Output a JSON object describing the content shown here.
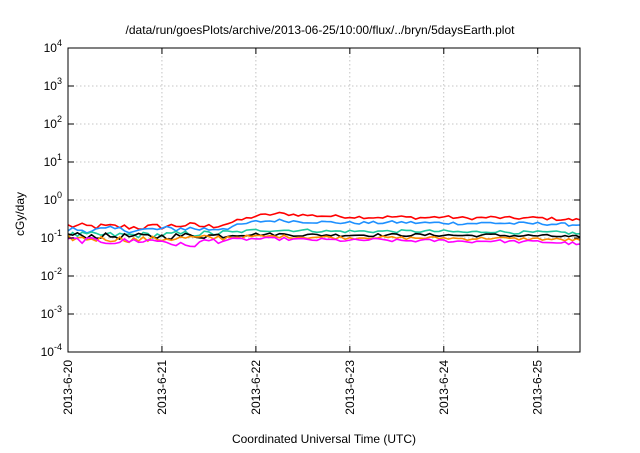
{
  "chart_data": {
    "type": "line",
    "title": "/data/run/goesPlots/archive/2013-06-25/10:00/flux/../bryn/5daysEarth.plot",
    "xlabel": "Coordinated Universal Time (UTC)",
    "ylabel": "cGy/day",
    "yscale": "log",
    "ylim": [
      0.0001,
      10000
    ],
    "xlim": [
      0,
      5.45
    ],
    "x_tick_labels": [
      "2013-6-20",
      "2013-6-21",
      "2013-6-22",
      "2013-6-23",
      "2013-6-24",
      "2013-6-25"
    ],
    "x_tick_values": [
      0,
      1,
      2,
      3,
      4,
      5
    ],
    "y_ticks": [
      {
        "base": "10",
        "exp": "4"
      },
      {
        "base": "10",
        "exp": "3"
      },
      {
        "base": "10",
        "exp": "2"
      },
      {
        "base": "10",
        "exp": "1"
      },
      {
        "base": "10",
        "exp": "0"
      },
      {
        "base": "10",
        "exp": "-1"
      },
      {
        "base": "10",
        "exp": "-2"
      },
      {
        "base": "10",
        "exp": "-3"
      },
      {
        "base": "10",
        "exp": "-4"
      }
    ],
    "y_tick_values": [
      10000,
      1000,
      100,
      10,
      1,
      0.1,
      0.01,
      0.001,
      0.0001
    ],
    "grid": true,
    "x": [
      0,
      0.25,
      0.5,
      0.75,
      1,
      1.25,
      1.5,
      1.75,
      2,
      2.25,
      2.5,
      2.75,
      3,
      3.25,
      3.5,
      3.75,
      4,
      4.25,
      4.5,
      4.75,
      5,
      5.25,
      5.45
    ],
    "series": [
      {
        "color": "#ff0000",
        "values": [
          0.21,
          0.2,
          0.2,
          0.19,
          0.2,
          0.22,
          0.2,
          0.26,
          0.38,
          0.44,
          0.4,
          0.38,
          0.36,
          0.35,
          0.36,
          0.34,
          0.36,
          0.33,
          0.35,
          0.33,
          0.34,
          0.31,
          0.3
        ]
      },
      {
        "color": "#1e90ff",
        "values": [
          0.17,
          0.16,
          0.17,
          0.16,
          0.17,
          0.18,
          0.17,
          0.2,
          0.27,
          0.29,
          0.27,
          0.26,
          0.25,
          0.25,
          0.26,
          0.25,
          0.25,
          0.24,
          0.25,
          0.24,
          0.24,
          0.23,
          0.22
        ]
      },
      {
        "color": "#1fc99e",
        "values": [
          0.12,
          0.12,
          0.12,
          0.12,
          0.12,
          0.13,
          0.13,
          0.14,
          0.16,
          0.16,
          0.16,
          0.15,
          0.15,
          0.15,
          0.15,
          0.15,
          0.15,
          0.14,
          0.15,
          0.14,
          0.14,
          0.14,
          0.13
        ]
      },
      {
        "color": "#000000",
        "values": [
          0.12,
          0.115,
          0.11,
          0.11,
          0.11,
          0.115,
          0.115,
          0.12,
          0.125,
          0.125,
          0.12,
          0.12,
          0.12,
          0.12,
          0.12,
          0.12,
          0.12,
          0.115,
          0.12,
          0.115,
          0.115,
          0.11,
          0.105
        ]
      },
      {
        "color": "#ff8c00",
        "values": [
          0.1,
          0.095,
          0.095,
          0.09,
          0.095,
          0.1,
          0.1,
          0.105,
          0.11,
          0.11,
          0.105,
          0.105,
          0.1,
          0.105,
          0.1,
          0.1,
          0.1,
          0.095,
          0.1,
          0.095,
          0.095,
          0.09,
          0.088
        ]
      },
      {
        "color": "#ff00ff",
        "values": [
          0.09,
          0.085,
          0.08,
          0.085,
          0.085,
          0.06,
          0.085,
          0.09,
          0.095,
          0.095,
          0.09,
          0.09,
          0.085,
          0.09,
          0.085,
          0.085,
          0.085,
          0.08,
          0.085,
          0.08,
          0.08,
          0.075,
          0.07
        ]
      }
    ]
  }
}
